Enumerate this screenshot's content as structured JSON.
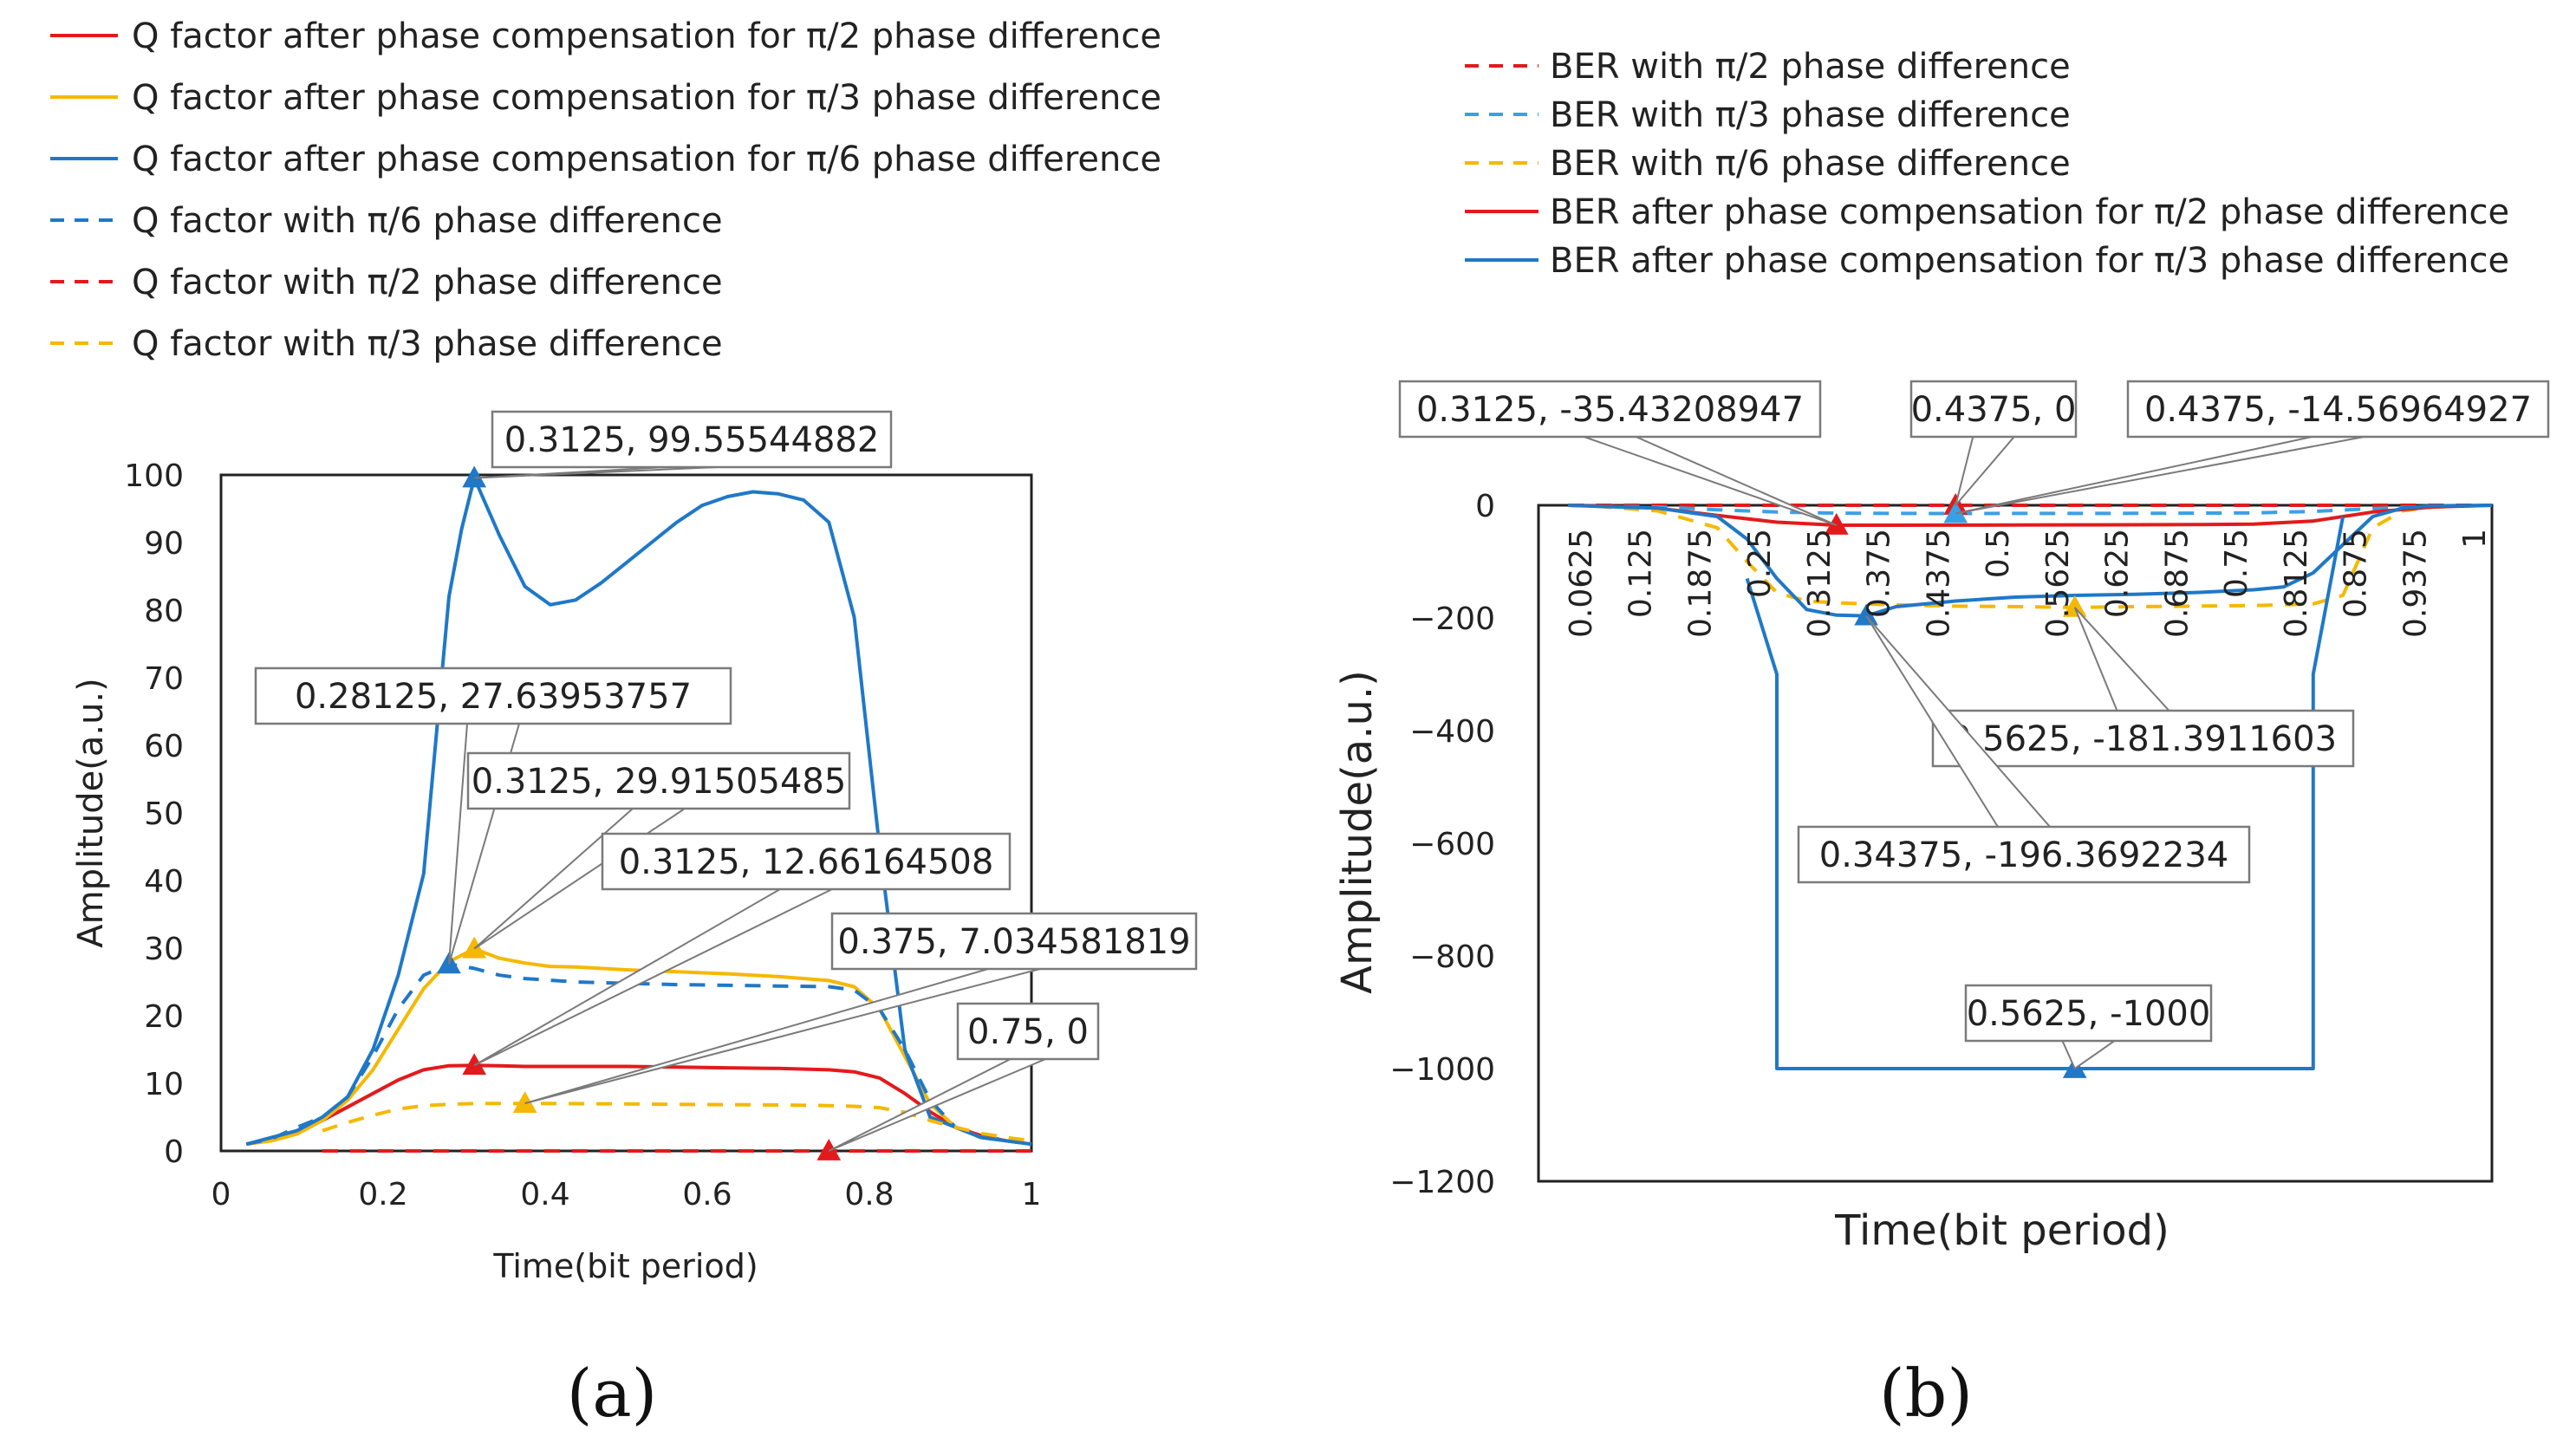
{
  "chart_data": [
    {
      "type": "line",
      "panel_label": "(a)",
      "xlabel": "Time(bit period)",
      "ylabel": "Amplitude(a.u.)",
      "xlim": [
        0,
        1
      ],
      "ylim": [
        0,
        100
      ],
      "x_ticks": [
        "0",
        "0.2",
        "0.4",
        "0.6",
        "0.8",
        "1"
      ],
      "y_ticks": [
        "0",
        "10",
        "20",
        "30",
        "40",
        "50",
        "60",
        "70",
        "80",
        "90",
        "100"
      ],
      "legend_position": "top",
      "series": [
        {
          "name": "Q factor after phase compensation for  π/2 phase difference",
          "color": "#e31a1c",
          "dash": "solid",
          "x": [
            0.03125,
            0.0625,
            0.09375,
            0.125,
            0.15625,
            0.1875,
            0.21875,
            0.25,
            0.28125,
            0.3125,
            0.34375,
            0.375,
            0.4375,
            0.5,
            0.5625,
            0.625,
            0.6875,
            0.75,
            0.78125,
            0.8125,
            0.84375,
            0.875,
            0.90625,
            0.9375,
            0.96875,
            1
          ],
          "y": [
            1,
            1.8,
            3,
            4.5,
            6.5,
            8.5,
            10.5,
            12,
            12.6,
            12.66,
            12.6,
            12.5,
            12.5,
            12.5,
            12.4,
            12.3,
            12.2,
            12,
            11.7,
            10.8,
            8.5,
            5.8,
            3.5,
            2.3,
            1.5,
            1
          ]
        },
        {
          "name": "Q factor after phase compensation for  π/3 phase difference",
          "color": "#f5b800",
          "dash": "solid",
          "x": [
            0.03125,
            0.0625,
            0.09375,
            0.125,
            0.15625,
            0.1875,
            0.21875,
            0.25,
            0.28125,
            0.3125,
            0.34375,
            0.375,
            0.40625,
            0.4375,
            0.5,
            0.5625,
            0.625,
            0.6875,
            0.75,
            0.78125,
            0.8125,
            0.84375,
            0.875,
            0.90625,
            0.9375,
            0.96875,
            1
          ],
          "y": [
            1,
            1.5,
            2.5,
            4.5,
            7.5,
            12,
            18,
            24,
            28,
            29.9,
            28.5,
            27.8,
            27.3,
            27.2,
            26.8,
            26.5,
            26.2,
            25.8,
            25.2,
            24.3,
            21,
            14,
            7,
            3.5,
            2,
            1.5,
            1
          ]
        },
        {
          "name": "Q factor after phase compensation for  π/6 phase difference",
          "color": "#1f78c8",
          "dash": "solid",
          "x": [
            0.03125,
            0.0625,
            0.09375,
            0.125,
            0.15625,
            0.1875,
            0.21875,
            0.25,
            0.28125,
            0.296875,
            0.3125,
            0.34375,
            0.375,
            0.40625,
            0.4375,
            0.46875,
            0.5,
            0.53125,
            0.5625,
            0.59375,
            0.625,
            0.65625,
            0.6875,
            0.71875,
            0.75,
            0.78125,
            0.8125,
            0.84375,
            0.875,
            0.90625,
            0.9375,
            0.96875,
            1
          ],
          "y": [
            1,
            2,
            3,
            5,
            8,
            15,
            26,
            41,
            82,
            92,
            99.55,
            91,
            83.5,
            80.8,
            81.5,
            84,
            87,
            90,
            93,
            95.5,
            96.8,
            97.5,
            97.2,
            96.3,
            93,
            79,
            45,
            15,
            5,
            3.5,
            2,
            1.5,
            1
          ]
        },
        {
          "name": "Q factor with π/6 phase difference",
          "color": "#1f78c8",
          "dash": "dashed",
          "x": [
            0.03125,
            0.0625,
            0.09375,
            0.125,
            0.15625,
            0.1875,
            0.21875,
            0.25,
            0.28125,
            0.3125,
            0.34375,
            0.375,
            0.4375,
            0.5,
            0.5625,
            0.625,
            0.6875,
            0.75,
            0.78125,
            0.8125,
            0.84375,
            0.875,
            0.90625,
            0.9375,
            0.96875,
            1
          ],
          "y": [
            1,
            1.8,
            3.5,
            5,
            8,
            14,
            21,
            26,
            27.64,
            27,
            26,
            25.5,
            25,
            24.8,
            24.6,
            24.5,
            24.4,
            24.3,
            23.8,
            21,
            15,
            7.5,
            3.5,
            2,
            1.5,
            1
          ]
        },
        {
          "name": "Q factor with π/2 phase difference",
          "color": "#e31a1c",
          "dash": "dashed",
          "x": [
            0.125,
            0.25,
            0.375,
            0.5,
            0.625,
            0.75,
            0.875,
            1
          ],
          "y": [
            0,
            0,
            0,
            0,
            0,
            0,
            0,
            0
          ]
        },
        {
          "name": "Q factor with π/3 phase difference",
          "color": "#f5b800",
          "dash": "dashed",
          "x": [
            0.125,
            0.15625,
            0.1875,
            0.21875,
            0.25,
            0.28125,
            0.3125,
            0.34375,
            0.375,
            0.4375,
            0.5,
            0.5625,
            0.625,
            0.6875,
            0.75,
            0.78125,
            0.8125,
            0.84375,
            0.875,
            0.90625,
            0.9375,
            0.96875,
            1
          ],
          "y": [
            3,
            4.2,
            5.3,
            6.2,
            6.7,
            6.9,
            7.0,
            7.03,
            7.03,
            7.0,
            6.95,
            6.9,
            6.85,
            6.8,
            6.7,
            6.6,
            6.4,
            5.7,
            4.5,
            3.5,
            2.6,
            2,
            1.5
          ]
        }
      ],
      "markers": [
        {
          "x": 0.3125,
          "y": 99.55544882,
          "color": "#1f78c8"
        },
        {
          "x": 0.28125,
          "y": 27.63953757,
          "color": "#1f78c8"
        },
        {
          "x": 0.3125,
          "y": 29.91505485,
          "color": "#f5b800"
        },
        {
          "x": 0.3125,
          "y": 12.66164508,
          "color": "#e31a1c"
        },
        {
          "x": 0.375,
          "y": 7.034581819,
          "color": "#f5b800"
        },
        {
          "x": 0.75,
          "y": 0,
          "color": "#e31a1c"
        }
      ],
      "annotations": [
        {
          "text": "0.3125, 99.55544882",
          "point": [
            0.3125,
            99.55544882
          ]
        },
        {
          "text": "0.28125, 27.63953757",
          "point": [
            0.28125,
            27.63953757
          ]
        },
        {
          "text": "0.3125, 29.91505485",
          "point": [
            0.3125,
            29.91505485
          ]
        },
        {
          "text": "0.3125, 12.66164508",
          "point": [
            0.3125,
            12.66164508
          ]
        },
        {
          "text": "0.375, 7.034581819",
          "point": [
            0.375,
            7.034581819
          ]
        },
        {
          "text": "0.75, 0",
          "point": [
            0.75,
            0
          ]
        }
      ]
    },
    {
      "type": "line",
      "panel_label": "(b)",
      "xlabel": "Time(bit period)",
      "ylabel": "Amplitude(a.u.)",
      "xlim": [
        0,
        1
      ],
      "ylim": [
        -1200,
        0
      ],
      "x_ticks": [
        "0.0625",
        "0.125",
        "0.1875",
        "0.25",
        "0.3125",
        "0.375",
        "0.4375",
        "0.5",
        "0.5625",
        "0.625",
        "0.6875",
        "0.75",
        "0.8125",
        "0.875",
        "0.9375",
        "1"
      ],
      "y_ticks": [
        "0",
        "−200",
        "−400",
        "−600",
        "−800",
        "−1000",
        "−1200"
      ],
      "legend_position": "top",
      "series": [
        {
          "name": "BER with π/2 phase difference",
          "color": "#e31a1c",
          "dash": "dashed",
          "x": [
            0.03125,
            0.125,
            0.25,
            0.375,
            0.5,
            0.625,
            0.75,
            0.875,
            1
          ],
          "y": [
            0,
            0,
            0,
            0,
            0,
            0,
            0,
            0,
            0
          ]
        },
        {
          "name": "BER with π/3 phase difference",
          "color": "#3aa0e6",
          "dash": "dashed",
          "x": [
            0.03125,
            0.0625,
            0.125,
            0.1875,
            0.25,
            0.3125,
            0.375,
            0.4375,
            0.5,
            0.5625,
            0.625,
            0.6875,
            0.75,
            0.8125,
            0.875,
            0.9375,
            1
          ],
          "y": [
            0,
            -1,
            -3,
            -8,
            -12,
            -14,
            -14.5,
            -14.57,
            -14.5,
            -14.4,
            -14.3,
            -14,
            -13.5,
            -11,
            -6,
            -2,
            0
          ]
        },
        {
          "name": "BER with π/6 phase difference",
          "color": "#f5b800",
          "dash": "dashed",
          "x": [
            0.03125,
            0.0625,
            0.125,
            0.1875,
            0.21875,
            0.25,
            0.28125,
            0.3125,
            0.34375,
            0.375,
            0.4375,
            0.5,
            0.5625,
            0.625,
            0.6875,
            0.75,
            0.8125,
            0.84375,
            0.875,
            0.90625,
            0.9375,
            1
          ],
          "y": [
            0,
            -2,
            -10,
            -40,
            -100,
            -155,
            -170,
            -173,
            -175,
            -177,
            -179,
            -180,
            -181.39,
            -180,
            -179,
            -178,
            -175,
            -160,
            -40,
            -10,
            -3,
            0
          ]
        },
        {
          "name": "BER after phase compensation for π/2 phase difference",
          "color": "#e31a1c",
          "dash": "solid",
          "x": [
            0.03125,
            0.0625,
            0.125,
            0.1875,
            0.25,
            0.3125,
            0.375,
            0.4375,
            0.5,
            0.5625,
            0.625,
            0.6875,
            0.75,
            0.8125,
            0.875,
            0.9375,
            1
          ],
          "y": [
            0,
            -1,
            -5,
            -18,
            -30,
            -35.43,
            -35.4,
            -35.2,
            -35,
            -34.8,
            -34.6,
            -34.3,
            -33.5,
            -28,
            -12,
            -3,
            0
          ]
        },
        {
          "name": "BER after phase compensation for π/3 phase difference",
          "color": "#1f78c8",
          "dash": "solid",
          "x": [
            0.03125,
            0.0625,
            0.125,
            0.1875,
            0.21875,
            0.25,
            0.28125,
            0.3125,
            0.34375,
            0.375,
            0.4375,
            0.5,
            0.5625,
            0.625,
            0.6875,
            0.75,
            0.78125,
            0.8125,
            0.84375,
            0.875,
            0.90625,
            0.9375,
            1
          ],
          "y": [
            0,
            -2,
            -5,
            -20,
            -60,
            -130,
            -185,
            -195,
            -196.37,
            -180,
            -170,
            -163,
            -160,
            -158,
            -155,
            -150,
            -145,
            -120,
            -70,
            -20,
            -5,
            -1,
            0
          ]
        },
        {
          "name": "",
          "color": "#1f78c8",
          "dash": "solid",
          "x": [
            0.21875,
            0.25,
            0.25,
            0.8125,
            0.8125,
            0.84375
          ],
          "y": [
            -130,
            -300,
            -1000,
            -1000,
            -300,
            -20
          ]
        }
      ],
      "markers": [
        {
          "x": 0.3125,
          "y": -35.43208947,
          "color": "#e31a1c"
        },
        {
          "x": 0.4375,
          "y": 0,
          "color": "#e31a1c"
        },
        {
          "x": 0.4375,
          "y": -14.56964927,
          "color": "#3aa0e6"
        },
        {
          "x": 0.5625,
          "y": -181.3911603,
          "color": "#f5b800"
        },
        {
          "x": 0.34375,
          "y": -196.3692234,
          "color": "#1f78c8"
        },
        {
          "x": 0.5625,
          "y": -1000,
          "color": "#1f78c8"
        }
      ],
      "annotations": [
        {
          "text": "0.3125, -35.43208947",
          "point": [
            0.3125,
            -35.43208947
          ]
        },
        {
          "text": "0.4375, 0",
          "point": [
            0.4375,
            0
          ]
        },
        {
          "text": "0.4375, -14.56964927",
          "point": [
            0.4375,
            -14.56964927
          ]
        },
        {
          "text": "0.5625, -181.3911603",
          "point": [
            0.5625,
            -181.3911603
          ]
        },
        {
          "text": "0.34375, -196.3692234",
          "point": [
            0.34375,
            -196.3692234
          ]
        },
        {
          "text": "0.5625, -1000",
          "point": [
            0.5625,
            -1000
          ]
        }
      ]
    }
  ]
}
